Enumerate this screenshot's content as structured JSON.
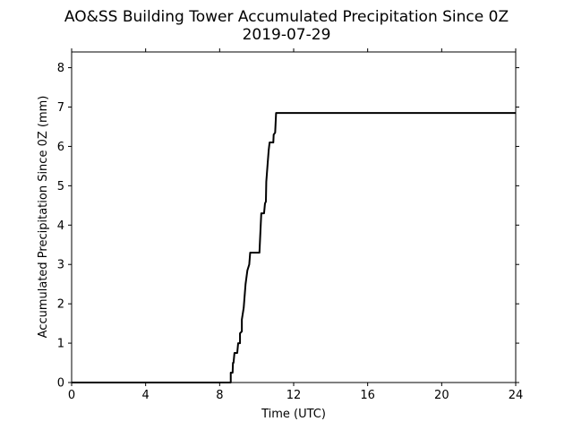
{
  "chart_data": {
    "type": "line",
    "title": "AO&SS Building Tower Accumulated Precipitation Since 0Z",
    "subtitle": "2019-07-29",
    "xlabel": "Time (UTC)",
    "ylabel": "Accumulated Precipitation Since 0Z (mm)",
    "xlim": [
      0,
      24
    ],
    "ylim": [
      0,
      8.4
    ],
    "xticks": [
      0,
      4,
      8,
      12,
      16,
      20,
      24
    ],
    "yticks": [
      0,
      1,
      2,
      3,
      4,
      5,
      6,
      7,
      8
    ],
    "grid": false,
    "series": [
      {
        "color": "#000000",
        "x": [
          0,
          8.6,
          8.6,
          8.7,
          8.72,
          8.75,
          8.8,
          8.85,
          8.95,
          9.0,
          9.1,
          9.1,
          9.2,
          9.2,
          9.3,
          9.35,
          9.4,
          9.5,
          9.6,
          9.65,
          9.7,
          10.15,
          10.2,
          10.25,
          10.4,
          10.45,
          10.5,
          10.52,
          10.6,
          10.65,
          10.7,
          10.9,
          10.92,
          11.0,
          11.05,
          24
        ],
        "y": [
          0,
          0,
          0.25,
          0.25,
          0.5,
          0.5,
          0.75,
          0.75,
          0.75,
          1.0,
          1.0,
          1.25,
          1.3,
          1.6,
          1.9,
          2.2,
          2.5,
          2.85,
          3.0,
          3.3,
          3.3,
          3.3,
          3.8,
          4.3,
          4.3,
          4.55,
          4.6,
          5.1,
          5.6,
          5.9,
          6.1,
          6.1,
          6.3,
          6.35,
          6.85,
          6.85
        ]
      }
    ]
  }
}
